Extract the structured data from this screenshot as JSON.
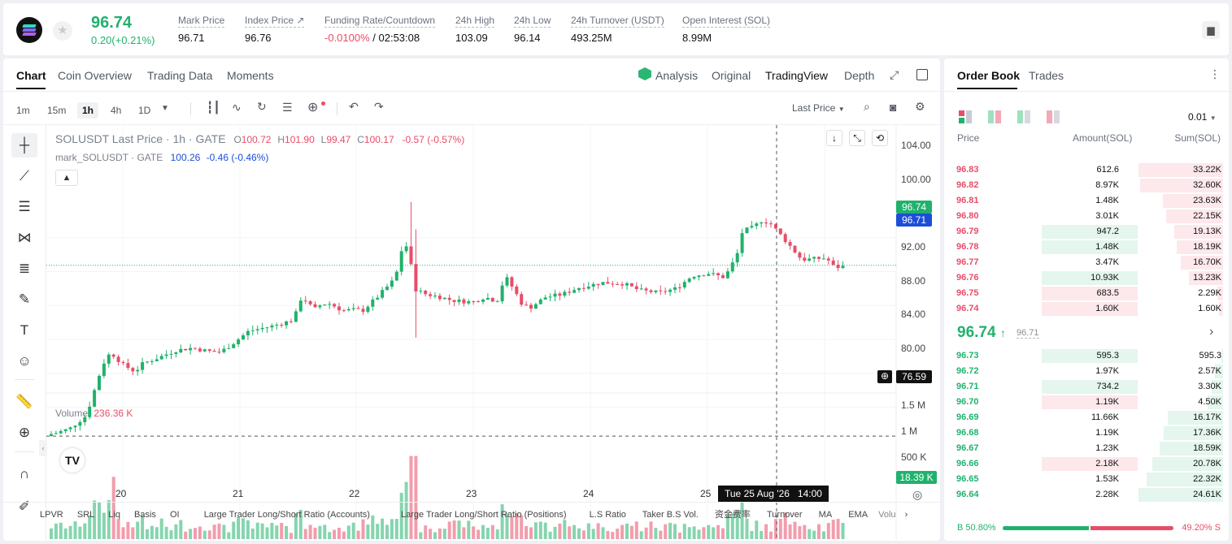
{
  "ticker": {
    "last_price": "96.74",
    "change": "0.20(+0.21%)",
    "stats": [
      {
        "label": "Mark Price",
        "value": "96.71"
      },
      {
        "label": "Index Price ↗",
        "value": "96.76"
      },
      {
        "label": "Funding Rate/Countdown",
        "value_red": "-0.0100%",
        "value": " / 02:53:08"
      },
      {
        "label": "24h High",
        "value": "103.09"
      },
      {
        "label": "24h Low",
        "value": "96.14"
      },
      {
        "label": "24h Turnover (USDT)",
        "value": "493.25M"
      },
      {
        "label": "Open Interest (SOL)",
        "value": "8.99M"
      }
    ]
  },
  "chart_tabs": [
    "Chart",
    "Coin Overview",
    "Trading Data",
    "Moments"
  ],
  "view_tabs": {
    "analysis": "Analysis",
    "original": "Original",
    "tradingview": "TradingView",
    "depth": "Depth"
  },
  "timeframes": [
    "1m",
    "15m",
    "1h",
    "4h",
    "1D"
  ],
  "price_type": "Last Price",
  "legend": {
    "symbol": "SOLUSDT Last Price · 1h · GATE",
    "o_label": "O",
    "o": "100.72",
    "h_label": "H",
    "h": "101.90",
    "l_label": "L",
    "l": "99.47",
    "c_label": "C",
    "c": "100.17",
    "chg": "-0.57 (-0.57%)",
    "mark_name": "mark_SOLUSDT · GATE",
    "mark_val": "100.26",
    "mark_chg": "-0.46 (-0.46%)"
  },
  "volume": {
    "label": "Volume",
    "value": "236.36 K",
    "tag": "18.39 K"
  },
  "price_tags": {
    "last": "96.74",
    "mark": "96.71",
    "cross": "76.59"
  },
  "crosshair_time": "Tue 25 Aug '26   14:00",
  "chart_data": {
    "type": "candlestick",
    "y_ticks": [
      "104.00",
      "100.00",
      "96.00",
      "92.00",
      "88.00",
      "84.00",
      "80.00"
    ],
    "vol_ticks": [
      "1.5 M",
      "1 M",
      "500 K"
    ],
    "x_ticks": [
      "20",
      "21",
      "22",
      "23",
      "24",
      "25"
    ],
    "ylim": [
      76,
      105
    ]
  },
  "bottom_links": [
    "LPVR",
    "SRL",
    "Liq",
    "Basis",
    "OI",
    "Large Trader Long/Short Ratio (Accounts)",
    "Large Trader Long/Short Ratio (Positions)",
    "L.S Ratio",
    "Taker B.S Vol.",
    "资金费率",
    "Turnover",
    "MA",
    "EMA",
    "Volu"
  ],
  "orderbook": {
    "tabs": [
      "Order Book",
      "Trades"
    ],
    "precision": "0.01",
    "headers": [
      "Price",
      "Amount(SOL)",
      "Sum(SOL)"
    ],
    "asks": [
      {
        "price": "96.83",
        "amount": "612.6",
        "sum": "33.22K",
        "amt_frac": 0,
        "sum_frac": 1.0
      },
      {
        "price": "96.82",
        "amount": "8.97K",
        "sum": "32.60K",
        "amt_frac": 0,
        "sum_frac": 0.98
      },
      {
        "price": "96.81",
        "amount": "1.48K",
        "sum": "23.63K",
        "amt_frac": 0,
        "sum_frac": 0.71
      },
      {
        "price": "96.80",
        "amount": "3.01K",
        "sum": "22.15K",
        "amt_frac": 0,
        "sum_frac": 0.67
      },
      {
        "price": "96.79",
        "amount": "947.2",
        "sum": "19.13K",
        "amt_frac": 1.0,
        "sum_frac": 0.58,
        "amt_side": "green"
      },
      {
        "price": "96.78",
        "amount": "1.48K",
        "sum": "18.19K",
        "amt_frac": 1.0,
        "sum_frac": 0.55,
        "amt_side": "green"
      },
      {
        "price": "96.77",
        "amount": "3.47K",
        "sum": "16.70K",
        "amt_frac": 0,
        "sum_frac": 0.5
      },
      {
        "price": "96.76",
        "amount": "10.93K",
        "sum": "13.23K",
        "amt_frac": 1.0,
        "sum_frac": 0.4,
        "amt_side": "green"
      },
      {
        "price": "96.75",
        "amount": "683.5",
        "sum": "2.29K",
        "amt_frac": 1.0,
        "sum_frac": 0.07,
        "amt_side": "red"
      },
      {
        "price": "96.74",
        "amount": "1.60K",
        "sum": "1.60K",
        "amt_frac": 1.0,
        "sum_frac": 0.05,
        "amt_side": "red"
      }
    ],
    "mid_price": "96.74",
    "mid_mark": "96.71",
    "bids": [
      {
        "price": "96.73",
        "amount": "595.3",
        "sum": "595.3",
        "amt_frac": 1.0,
        "sum_frac": 0.02,
        "amt_side": "green"
      },
      {
        "price": "96.72",
        "amount": "1.97K",
        "sum": "2.57K",
        "amt_frac": 0,
        "sum_frac": 0.1
      },
      {
        "price": "96.71",
        "amount": "734.2",
        "sum": "3.30K",
        "amt_frac": 1.0,
        "sum_frac": 0.13,
        "amt_side": "green"
      },
      {
        "price": "96.70",
        "amount": "1.19K",
        "sum": "4.50K",
        "amt_frac": 1.0,
        "sum_frac": 0.18,
        "amt_side": "red"
      },
      {
        "price": "96.69",
        "amount": "11.66K",
        "sum": "16.17K",
        "amt_frac": 0,
        "sum_frac": 0.65
      },
      {
        "price": "96.68",
        "amount": "1.19K",
        "sum": "17.36K",
        "amt_frac": 0,
        "sum_frac": 0.7
      },
      {
        "price": "96.67",
        "amount": "1.23K",
        "sum": "18.59K",
        "amt_frac": 0,
        "sum_frac": 0.75
      },
      {
        "price": "96.66",
        "amount": "2.18K",
        "sum": "20.78K",
        "amt_frac": 1.0,
        "sum_frac": 0.84,
        "amt_side": "red"
      },
      {
        "price": "96.65",
        "amount": "1.53K",
        "sum": "22.32K",
        "amt_frac": 0,
        "sum_frac": 0.9
      },
      {
        "price": "96.64",
        "amount": "2.28K",
        "sum": "24.61K",
        "amt_frac": 0,
        "sum_frac": 1.0
      }
    ],
    "buy_ratio": "50.80%",
    "sell_ratio": "49.20%",
    "buy_label": "B",
    "sell_label": "S"
  },
  "colors": {
    "up": "#20b26c",
    "down": "#e84d68",
    "mark": "#1d4ed8"
  }
}
